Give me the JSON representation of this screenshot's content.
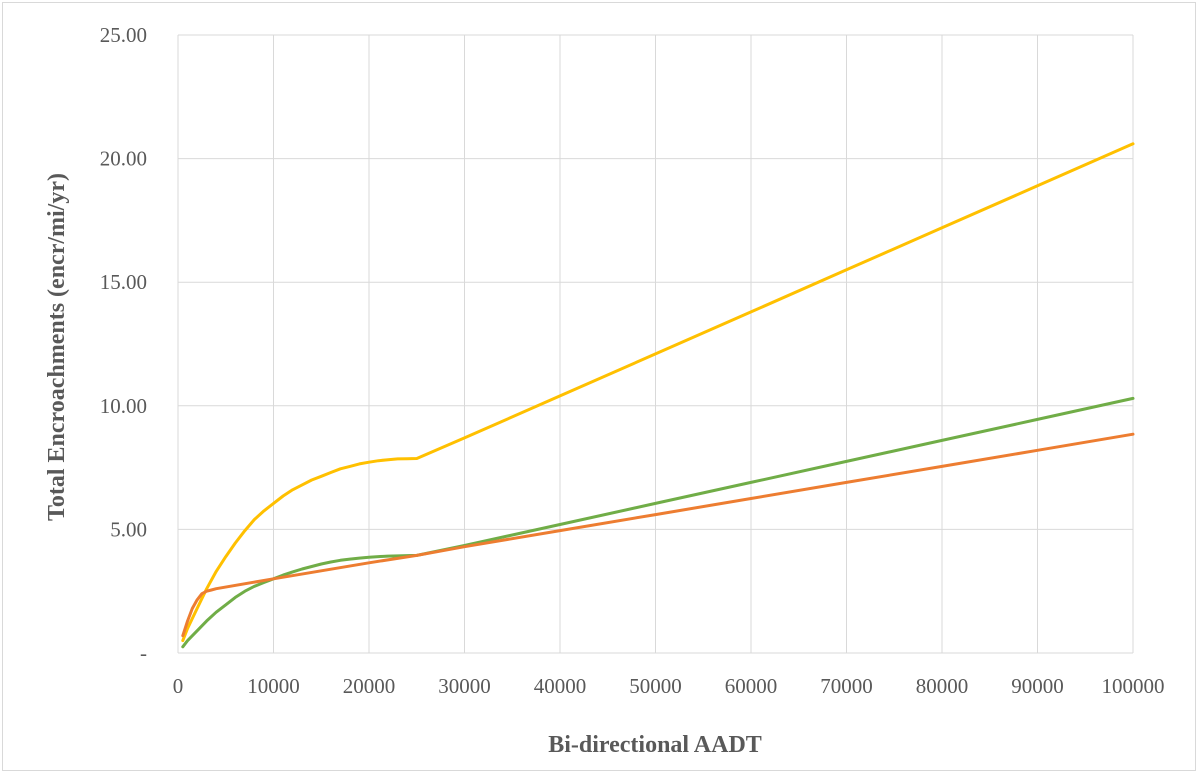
{
  "chart_data": {
    "type": "line",
    "title": "",
    "xlabel": "Bi-directional AADT",
    "ylabel": "Total Encroachments (encr/mi/yr)",
    "xlim": [
      0,
      100000
    ],
    "ylim": [
      0,
      25
    ],
    "x_ticks": [
      "0",
      "10000",
      "20000",
      "30000",
      "40000",
      "50000",
      "60000",
      "70000",
      "80000",
      "90000",
      "100000"
    ],
    "y_ticks": [
      "-",
      "5.00",
      "10.00",
      "15.00",
      "20.00",
      "25.00"
    ],
    "grid": "on",
    "legend": "none",
    "series": [
      {
        "color": "#ffc000",
        "x": [
          500,
          1000,
          2000,
          3000,
          4000,
          5000,
          6000,
          7000,
          8000,
          9000,
          10000,
          11000,
          12000,
          13000,
          14000,
          15000,
          16000,
          17000,
          18000,
          19000,
          20000,
          21000,
          22000,
          23000,
          24000,
          25000,
          30000,
          40000,
          50000,
          60000,
          70000,
          80000,
          90000,
          100000
        ],
        "values": [
          0.5,
          1.0,
          1.8,
          2.6,
          3.3,
          3.9,
          4.45,
          4.95,
          5.4,
          5.75,
          6.05,
          6.35,
          6.6,
          6.8,
          7.0,
          7.15,
          7.3,
          7.45,
          7.55,
          7.65,
          7.72,
          7.78,
          7.82,
          7.85,
          7.86,
          7.87,
          8.7,
          10.4,
          12.1,
          13.8,
          15.5,
          17.2,
          18.9,
          20.6
        ]
      },
      {
        "color": "#70ad47",
        "x": [
          500,
          1000,
          2000,
          3000,
          4000,
          5000,
          6000,
          7000,
          8000,
          9000,
          10000,
          11000,
          12000,
          13000,
          14000,
          15000,
          16000,
          17000,
          18000,
          19000,
          20000,
          21000,
          22000,
          23000,
          24000,
          25000,
          30000,
          40000,
          50000,
          60000,
          70000,
          80000,
          90000,
          100000
        ],
        "values": [
          0.25,
          0.5,
          0.9,
          1.3,
          1.65,
          1.95,
          2.25,
          2.5,
          2.7,
          2.85,
          3.0,
          3.15,
          3.28,
          3.4,
          3.5,
          3.6,
          3.68,
          3.75,
          3.8,
          3.84,
          3.87,
          3.9,
          3.92,
          3.93,
          3.94,
          3.95,
          4.35,
          5.2,
          6.05,
          6.9,
          7.75,
          8.6,
          9.45,
          10.3
        ]
      },
      {
        "color": "#ed7d31",
        "x": [
          500,
          1000,
          1500,
          2000,
          2500,
          3000,
          3500,
          4000,
          10000,
          20000,
          25000,
          30000,
          40000,
          50000,
          60000,
          70000,
          80000,
          90000,
          100000
        ],
        "values": [
          0.7,
          1.3,
          1.8,
          2.15,
          2.4,
          2.5,
          2.55,
          2.6,
          3.0,
          3.65,
          3.95,
          4.3,
          4.95,
          5.6,
          6.25,
          6.9,
          7.55,
          8.2,
          8.85
        ]
      }
    ]
  }
}
